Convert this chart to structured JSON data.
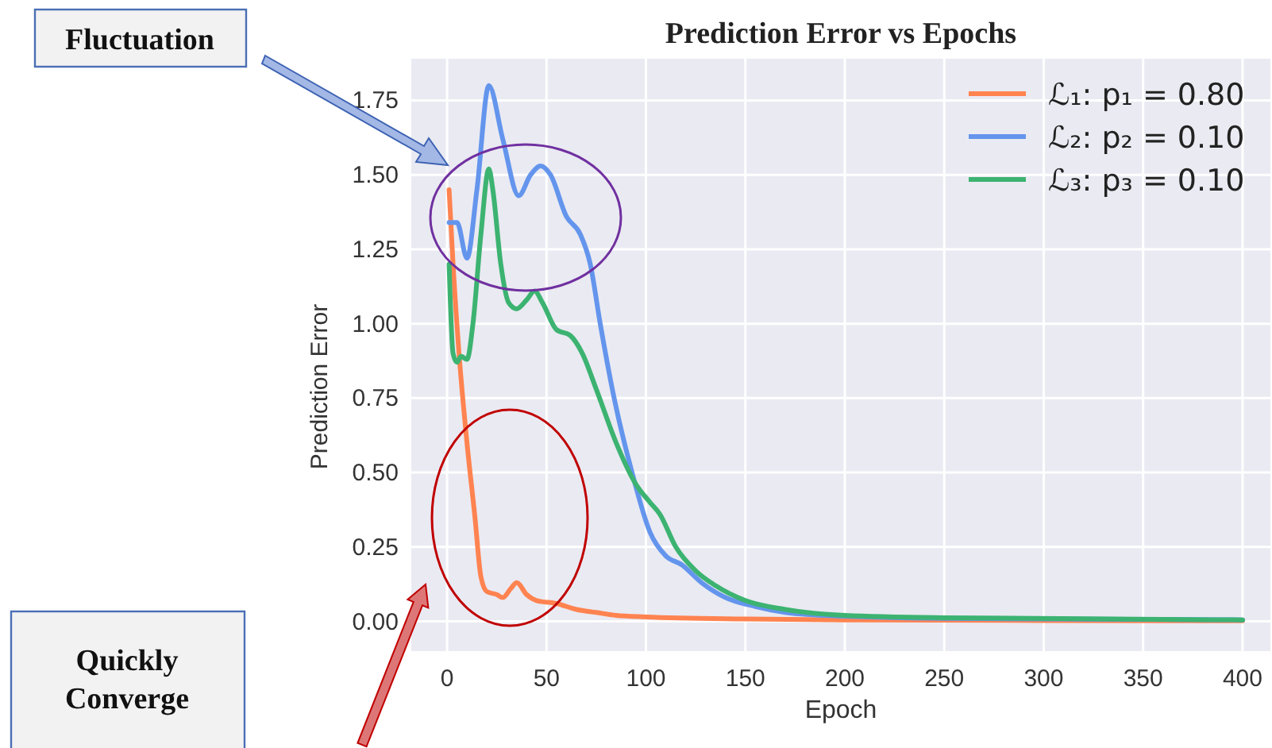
{
  "chart_data": {
    "type": "line",
    "title": "Prediction Error vs Epochs",
    "xlabel": "Epoch",
    "ylabel": "Prediction Error",
    "annotations": [
      "Fluctuation",
      "Quickly Converge"
    ],
    "xlim": [
      -18,
      414
    ],
    "xticks": [
      0,
      50,
      100,
      150,
      200,
      250,
      300,
      350,
      400
    ],
    "ylim": [
      -0.1,
      1.89
    ],
    "yticks": [
      {
        "value": 0,
        "label": "0.00"
      },
      {
        "value": 0.25,
        "label": "0.25"
      },
      {
        "value": 0.5,
        "label": "0.50"
      },
      {
        "value": 0.75,
        "label": "0.75"
      },
      {
        "value": 1,
        "label": "1.00"
      },
      {
        "value": 1.25,
        "label": "1.25"
      },
      {
        "value": 1.5,
        "label": "1.50"
      },
      {
        "value": 1.75,
        "label": "1.75"
      }
    ],
    "grid": true,
    "legend": "top right",
    "line_style": "solid",
    "marker": "none",
    "series": [
      {
        "name": "ℒ₁: p₁ = 0.80",
        "color": "#ff8350",
        "x": [
          1,
          3,
          6,
          10,
          14,
          17,
          20,
          25,
          28,
          32,
          35,
          40,
          45,
          55,
          65,
          75,
          85,
          100,
          150,
          200,
          300,
          400
        ],
        "values": [
          1.45,
          1.2,
          0.9,
          0.6,
          0.35,
          0.15,
          0.1,
          0.09,
          0.08,
          0.11,
          0.13,
          0.09,
          0.07,
          0.06,
          0.04,
          0.03,
          0.02,
          0.015,
          0.008,
          0.005,
          0.003,
          0.002
        ]
      },
      {
        "name": "ℒ₂: p₂ = 0.10",
        "color": "#6495ed",
        "x": [
          1,
          5,
          10,
          15,
          21,
          28,
          36,
          42,
          47,
          52,
          60,
          67,
          72,
          77,
          84,
          93,
          102,
          110,
          118,
          128,
          140,
          155,
          170,
          190,
          250,
          400
        ],
        "values": [
          1.34,
          1.34,
          1.22,
          1.45,
          1.8,
          1.62,
          1.43,
          1.5,
          1.53,
          1.5,
          1.36,
          1.3,
          1.2,
          1.0,
          0.75,
          0.5,
          0.3,
          0.22,
          0.19,
          0.13,
          0.08,
          0.05,
          0.03,
          0.02,
          0.01,
          0.005
        ]
      },
      {
        "name": "ℒ₃: p₃ = 0.10",
        "color": "#3cb371",
        "x": [
          1,
          3,
          5,
          7,
          10,
          13,
          17,
          21,
          23,
          27,
          31,
          35,
          40,
          44,
          48,
          55,
          62,
          68,
          75,
          85,
          95,
          102,
          107,
          115,
          125,
          135,
          150,
          170,
          200,
          250,
          400
        ],
        "values": [
          1.2,
          0.9,
          0.87,
          0.89,
          0.88,
          1.0,
          1.3,
          1.52,
          1.45,
          1.2,
          1.07,
          1.05,
          1.08,
          1.11,
          1.07,
          0.98,
          0.96,
          0.9,
          0.78,
          0.6,
          0.46,
          0.4,
          0.36,
          0.25,
          0.17,
          0.12,
          0.07,
          0.04,
          0.02,
          0.012,
          0.005
        ]
      }
    ]
  }
}
